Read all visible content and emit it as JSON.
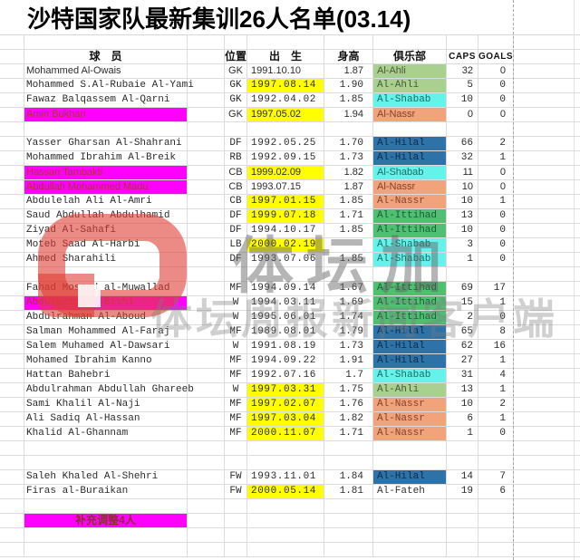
{
  "title": "沙特国家队最新集训26人名单(03.14)",
  "note": "补充调整4人",
  "watermark": {
    "app_name": "体坛加",
    "caption": "体坛周报新闻客户端"
  },
  "columns": {
    "player": "球　员",
    "position": "位置",
    "birth": "出　生",
    "height": "身高",
    "club": "俱乐部",
    "caps": "CAPS",
    "goals": "GOALS"
  },
  "highlight_colors": {
    "birth_highlight": "#ffff00",
    "name_highlight": "#ff00ff"
  },
  "club_colors": {
    "Al-Ahli": {
      "bg": "#a9d08e",
      "text": "#4a5a36"
    },
    "Al-Shabab": {
      "bg": "#63f3eb",
      "text": "#1d6b66"
    },
    "Al-Nassr": {
      "bg": "#f1a47b",
      "text": "#83402a"
    },
    "Al-Hilal": {
      "bg": "#2d73a8",
      "text": "#0e2b4a"
    },
    "Al-Ittihad": {
      "bg": "#4fbf72",
      "text": "#1d5c35"
    },
    "Al-Fateh": {
      "bg": "",
      "text": "#333333"
    }
  },
  "groups": [
    {
      "name": "goalkeepers",
      "blanks_after": 1,
      "players": [
        {
          "name": "Mohammed Al-Owais",
          "font": "sans",
          "pos": "GK",
          "birth": "1991.10.10",
          "height": "1.87",
          "club": "Al-Ahli",
          "caps": "32",
          "goals": "0"
        },
        {
          "name": "Mohammed S.Al-Rubaie Al-Yami",
          "font": "mono",
          "pos": "GK",
          "birth": "1997.08.14",
          "birth_hl": true,
          "height": "1.90",
          "club": "Al-Ahli",
          "caps": "5",
          "goals": "0"
        },
        {
          "name": "Fawaz Balqassem Al-Qarni",
          "font": "mono",
          "pos": "GK",
          "birth": "1992.04.02",
          "height": "1.85",
          "club": "Al-Shabab",
          "caps": "10",
          "goals": "0"
        },
        {
          "name": "Amin Bukhari",
          "font": "sans",
          "name_hl": true,
          "pos": "GK",
          "birth": "1997.05.02",
          "birth_hl": true,
          "height": "1.94",
          "club": "Al-Nassr",
          "caps": "0",
          "goals": "0"
        }
      ]
    },
    {
      "name": "defenders",
      "blanks_after": 1,
      "players": [
        {
          "name": "Yasser Gharsan Al-Shahrani",
          "font": "mono",
          "pos": "DF",
          "birth": "1992.05.25",
          "height": "1.70",
          "club": "Al-Hilal",
          "caps": "66",
          "goals": "2"
        },
        {
          "name": "Mohammed Ibrahim Al-Breik",
          "font": "mono",
          "pos": "RB",
          "birth": "1992.09.15",
          "height": "1.73",
          "club": "Al-Hilal",
          "caps": "32",
          "goals": "1"
        },
        {
          "name": "Hassan Tambakti",
          "font": "sans",
          "name_hl": true,
          "pos": "CB",
          "birth": "1999.02.09",
          "birth_hl": true,
          "height": "1.82",
          "club": "Al-Shabab",
          "caps": "11",
          "goals": "0"
        },
        {
          "name": "Abdullah Mohammed Madu",
          "font": "sans",
          "name_hl": true,
          "pos": "CB",
          "birth": "1993.07.15",
          "height": "1.87",
          "club": "Al-Nassr",
          "caps": "10",
          "goals": "0"
        },
        {
          "name": "Abdulelah Ali Al-Amri",
          "font": "mono",
          "pos": "CB",
          "birth": "1997.01.15",
          "birth_hl": true,
          "height": "1.85",
          "club": "Al-Nassr",
          "caps": "10",
          "goals": "1"
        },
        {
          "name": "Saud Abdullah Abdulhamid",
          "font": "mono",
          "pos": "DF",
          "birth": "1999.07.18",
          "birth_hl": true,
          "height": "1.71",
          "club": "Al-Ittihad",
          "caps": "13",
          "goals": "0"
        },
        {
          "name": "Ziyad Al-Sahafi",
          "font": "mono",
          "pos": "DF",
          "birth": "1994.10.17",
          "height": "1.85",
          "club": "Al-Ittihad",
          "caps": "10",
          "goals": "0"
        },
        {
          "name": "Moteb Saad Al-Harbi",
          "font": "mono",
          "pos": "LB",
          "birth": "2000.02.19",
          "birth_hl": true,
          "height": "",
          "club": "Al-Shabab",
          "caps": "3",
          "goals": "0"
        },
        {
          "name": "Ahmed Sharahili",
          "font": "mono",
          "pos": "DF",
          "birth": "1993.07.06",
          "height": "1.85",
          "club": "Al-Shabab",
          "caps": "1",
          "goals": "0"
        }
      ]
    },
    {
      "name": "midfielders",
      "blanks_after": 2,
      "players": [
        {
          "name": "Fahad Mosaed al-Muwallad",
          "font": "mono",
          "pos": "MF",
          "birth": "1994.09.14",
          "height": "1.67",
          "club": "Al-Ittihad",
          "caps": "69",
          "goals": "17"
        },
        {
          "name": "Abdulaziz Al-Bishi",
          "font": "mono",
          "name_hl": true,
          "pos": "W",
          "birth": "1994.03.11",
          "height": "1.69",
          "club": "Al-Ittihad",
          "caps": "15",
          "goals": "1"
        },
        {
          "name": "Abdulrahman Al-Aboud",
          "font": "mono",
          "pos": "W",
          "birth": "1995.06.01",
          "height": "1.74",
          "club": "Al-Ittihad",
          "caps": "2",
          "goals": "0"
        },
        {
          "name": "Salman Mohammed Al-Faraj",
          "font": "mono",
          "pos": "MF",
          "birth": "1989.08.01",
          "height": "1.79",
          "club": "Al-Hilal",
          "caps": "65",
          "goals": "8"
        },
        {
          "name": "Salem Muhamed Al-Dawsari",
          "font": "mono",
          "pos": "W",
          "birth": "1991.08.19",
          "height": "1.73",
          "club": "Al-Hilal",
          "caps": "62",
          "goals": "16"
        },
        {
          "name": "Mohamed Ibrahim Kanno",
          "font": "mono",
          "pos": "MF",
          "birth": "1994.09.22",
          "height": "1.91",
          "club": "Al-Hilal",
          "caps": "27",
          "goals": "1"
        },
        {
          "name": "Hattan Bahebri",
          "font": "mono",
          "pos": "MF",
          "birth": "1992.07.16",
          "height": "1.7",
          "club": "Al-Shabab",
          "caps": "31",
          "goals": "4"
        },
        {
          "name": "Abdulrahman Abdullah Ghareeb",
          "font": "mono",
          "pos": "W",
          "birth": "1997.03.31",
          "birth_hl": true,
          "height": "1.75",
          "club": "Al-Ahli",
          "caps": "13",
          "goals": "1"
        },
        {
          "name": "Sami Khalil Al-Naji",
          "font": "mono",
          "pos": "MF",
          "birth": "1997.02.07",
          "birth_hl": true,
          "height": "1.76",
          "club": "Al-Nassr",
          "caps": "10",
          "goals": "2"
        },
        {
          "name": "Ali Sadiq Al-Hassan",
          "font": "mono",
          "pos": "MF",
          "birth": "1997.03.04",
          "birth_hl": true,
          "height": "1.82",
          "club": "Al-Nassr",
          "caps": "6",
          "goals": "1"
        },
        {
          "name": "Khalid Al-Ghannam",
          "font": "mono",
          "pos": "MF",
          "birth": "2000.11.07",
          "birth_hl": true,
          "height": "1.71",
          "club": "Al-Nassr",
          "caps": "1",
          "goals": "0"
        }
      ]
    },
    {
      "name": "forwards",
      "blanks_after": 1,
      "players": [
        {
          "name": "Saleh Khaled Al-Shehri",
          "font": "mono",
          "pos": "FW",
          "birth": "1993.11.01",
          "height": "1.84",
          "club": "Al-Hilal",
          "caps": "14",
          "goals": "7"
        },
        {
          "name": "Firas al-Buraikan",
          "font": "mono",
          "pos": "FW",
          "birth": "2000.05.14",
          "birth_hl": true,
          "height": "1.81",
          "club": "Al-Fateh",
          "caps": "19",
          "goals": "6"
        }
      ]
    }
  ]
}
